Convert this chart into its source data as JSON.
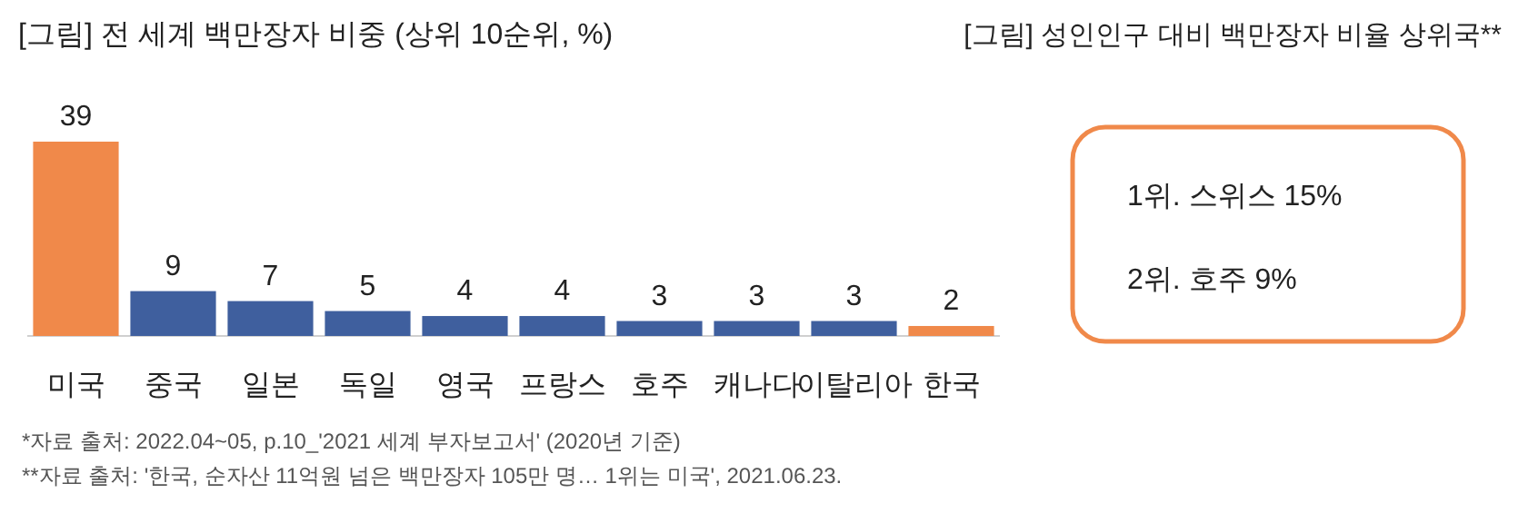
{
  "chart_data": [
    {
      "type": "bar",
      "title": "[그림] 전 세계 백만장자 비중 (상위 10순위, %)",
      "categories": [
        "미국",
        "중국",
        "일본",
        "독일",
        "영국",
        "프랑스",
        "호주",
        "캐나다",
        "이탈리아",
        "한국"
      ],
      "values": [
        39,
        9,
        7,
        5,
        4,
        4,
        3,
        3,
        3,
        2
      ],
      "colors": [
        "#f0894a",
        "#3f5f9e",
        "#3f5f9e",
        "#3f5f9e",
        "#3f5f9e",
        "#3f5f9e",
        "#3f5f9e",
        "#3f5f9e",
        "#3f5f9e",
        "#f0894a"
      ],
      "data_labels": true,
      "annotations": [
        "*자료 출처: 2022.04~05, p.10_'2021 세계 부자보고서' (2020년 기준)",
        "**자료 출처: '한국, 순자산 11억원 넘은 백만장자 105만 명… 1위는 미국', 2021.06.23."
      ]
    },
    {
      "type": "other",
      "title": "[그림] 성인인구 대비 백만장자 비율 상위국**",
      "annotations": [
        "1위. 스위스 15%",
        "2위. 호주 9%"
      ]
    }
  ]
}
